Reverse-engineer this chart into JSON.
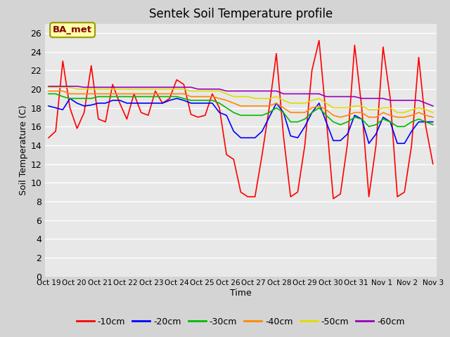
{
  "title": "Sentek Soil Temperature profile",
  "xlabel": "Time",
  "ylabel": "Soil Temperature (C)",
  "annotation": "BA_met",
  "fig_bg_color": "#d4d4d4",
  "plot_bg_color": "#e8e8e8",
  "ylim": [
    0,
    27
  ],
  "yticks": [
    0,
    2,
    4,
    6,
    8,
    10,
    12,
    14,
    16,
    18,
    20,
    22,
    24,
    26
  ],
  "x_labels": [
    "Oct 19",
    "Oct 20",
    "Oct 21",
    "Oct 22",
    "Oct 23",
    "Oct 24",
    "Oct 25",
    "Oct 26",
    "Oct 27",
    "Oct 28",
    "Oct 29",
    "Oct 30",
    "Oct 31",
    "Nov 1",
    "Nov 2",
    "Nov 3"
  ],
  "colors": {
    "-10cm": "#ff0000",
    "-20cm": "#0000ff",
    "-30cm": "#00bb00",
    "-40cm": "#ff8800",
    "-50cm": "#dddd00",
    "-60cm": "#9900bb"
  },
  "series": {
    "-10cm": [
      14.8,
      15.5,
      23.0,
      18.0,
      15.8,
      17.5,
      22.5,
      16.8,
      16.5,
      20.5,
      18.5,
      16.8,
      19.5,
      17.5,
      17.2,
      19.8,
      18.5,
      19.0,
      21.0,
      20.5,
      17.3,
      17.0,
      17.2,
      19.5,
      18.0,
      13.0,
      12.5,
      9.0,
      8.5,
      8.5,
      13.0,
      18.0,
      23.8,
      15.0,
      8.5,
      9.0,
      14.0,
      22.0,
      25.2,
      17.0,
      8.3,
      8.8,
      14.2,
      24.7,
      18.0,
      8.5,
      14.0,
      24.5,
      19.0,
      8.5,
      9.0,
      14.0,
      23.4,
      16.0,
      12.0
    ],
    "-20cm": [
      18.2,
      18.0,
      17.8,
      19.0,
      18.5,
      18.2,
      18.3,
      18.5,
      18.5,
      18.8,
      18.8,
      18.5,
      18.5,
      18.5,
      18.5,
      18.5,
      18.5,
      18.8,
      19.0,
      18.8,
      18.5,
      18.5,
      18.5,
      18.5,
      17.5,
      17.2,
      15.5,
      14.8,
      14.8,
      14.8,
      15.5,
      17.0,
      18.5,
      17.5,
      15.0,
      14.8,
      16.0,
      17.5,
      18.5,
      16.5,
      14.5,
      14.5,
      15.2,
      17.2,
      16.8,
      14.2,
      15.2,
      17.0,
      16.5,
      14.2,
      14.2,
      15.5,
      16.5,
      16.5,
      16.5
    ],
    "-30cm": [
      19.5,
      19.5,
      19.2,
      19.0,
      19.0,
      19.0,
      19.0,
      19.2,
      19.2,
      19.2,
      19.2,
      19.2,
      19.2,
      19.2,
      19.2,
      19.2,
      19.2,
      19.2,
      19.2,
      19.0,
      18.8,
      18.8,
      18.8,
      18.8,
      18.5,
      18.0,
      17.5,
      17.2,
      17.2,
      17.2,
      17.2,
      17.5,
      18.0,
      17.5,
      16.5,
      16.5,
      16.8,
      17.5,
      18.0,
      17.2,
      16.5,
      16.2,
      16.5,
      17.0,
      16.8,
      16.0,
      16.2,
      16.8,
      16.5,
      16.0,
      16.0,
      16.5,
      16.8,
      16.5,
      16.2
    ],
    "-40cm": [
      19.8,
      19.8,
      19.8,
      19.5,
      19.5,
      19.5,
      19.5,
      19.5,
      19.5,
      19.5,
      19.5,
      19.5,
      19.5,
      19.5,
      19.5,
      19.5,
      19.5,
      19.5,
      19.5,
      19.5,
      19.2,
      19.2,
      19.2,
      19.2,
      19.0,
      18.8,
      18.5,
      18.2,
      18.2,
      18.2,
      18.2,
      18.2,
      18.5,
      18.0,
      17.5,
      17.5,
      17.5,
      18.0,
      18.2,
      17.8,
      17.2,
      17.0,
      17.2,
      17.5,
      17.5,
      17.0,
      17.0,
      17.5,
      17.2,
      17.0,
      17.0,
      17.2,
      17.5,
      17.2,
      17.0
    ],
    "-50cm": [
      20.2,
      20.2,
      20.2,
      20.2,
      20.0,
      20.0,
      20.0,
      20.0,
      20.0,
      20.0,
      20.0,
      20.0,
      20.0,
      20.0,
      20.0,
      20.0,
      20.0,
      20.0,
      20.0,
      20.0,
      19.8,
      19.8,
      19.8,
      19.8,
      19.8,
      19.5,
      19.2,
      19.2,
      19.2,
      19.0,
      19.0,
      19.0,
      19.2,
      18.8,
      18.5,
      18.5,
      18.5,
      18.8,
      19.0,
      18.5,
      18.0,
      18.0,
      18.0,
      18.2,
      18.2,
      17.8,
      17.8,
      18.0,
      18.0,
      17.5,
      17.5,
      17.8,
      18.0,
      17.8,
      17.5
    ],
    "-60cm": [
      20.3,
      20.3,
      20.3,
      20.3,
      20.3,
      20.2,
      20.2,
      20.2,
      20.2,
      20.2,
      20.2,
      20.2,
      20.2,
      20.2,
      20.2,
      20.2,
      20.2,
      20.2,
      20.2,
      20.2,
      20.2,
      20.0,
      20.0,
      20.0,
      20.0,
      19.8,
      19.8,
      19.8,
      19.8,
      19.8,
      19.8,
      19.8,
      19.8,
      19.5,
      19.5,
      19.5,
      19.5,
      19.5,
      19.5,
      19.2,
      19.2,
      19.2,
      19.2,
      19.2,
      19.0,
      19.0,
      19.0,
      19.0,
      18.8,
      18.8,
      18.8,
      18.8,
      18.8,
      18.5,
      18.2
    ]
  }
}
